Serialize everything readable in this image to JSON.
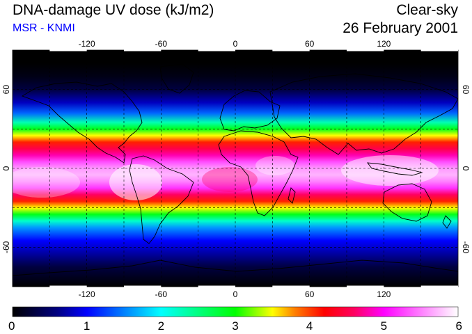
{
  "header": {
    "title": "DNA-damage UV dose (kJ/m2)",
    "source": "MSR - KNMI",
    "sky_condition": "Clear-sky",
    "date": "26 February 2001"
  },
  "map": {
    "projection": "equirectangular",
    "lon_range": [
      -180,
      180
    ],
    "lat_range": [
      -90,
      90
    ],
    "grid_spacing_deg": 30,
    "longitude_tick_labels": [
      {
        "value": -120,
        "label": "-120"
      },
      {
        "value": -60,
        "label": "-60"
      },
      {
        "value": 0,
        "label": "0"
      },
      {
        "value": 60,
        "label": "60"
      },
      {
        "value": 120,
        "label": "120"
      }
    ],
    "latitude_tick_labels": [
      {
        "value": 60,
        "label": "60"
      },
      {
        "value": 0,
        "label": "0"
      },
      {
        "value": -60,
        "label": "-60"
      }
    ],
    "dose_profile": [
      {
        "lat": 90,
        "dose": 0.0
      },
      {
        "lat": 80,
        "dose": 0.0
      },
      {
        "lat": 70,
        "dose": 0.1
      },
      {
        "lat": 60,
        "dose": 0.3
      },
      {
        "lat": 50,
        "dose": 0.8
      },
      {
        "lat": 42,
        "dose": 1.4
      },
      {
        "lat": 35,
        "dose": 2.3
      },
      {
        "lat": 30,
        "dose": 2.9
      },
      {
        "lat": 25,
        "dose": 3.5
      },
      {
        "lat": 20,
        "dose": 4.1
      },
      {
        "lat": 15,
        "dose": 4.5
      },
      {
        "lat": 10,
        "dose": 4.8
      },
      {
        "lat": 5,
        "dose": 5.3
      },
      {
        "lat": 0,
        "dose": 5.6
      },
      {
        "lat": -5,
        "dose": 5.7
      },
      {
        "lat": -10,
        "dose": 5.5
      },
      {
        "lat": -15,
        "dose": 5.2
      },
      {
        "lat": -20,
        "dose": 4.6
      },
      {
        "lat": -25,
        "dose": 4.1
      },
      {
        "lat": -30,
        "dose": 3.5
      },
      {
        "lat": -35,
        "dose": 2.9
      },
      {
        "lat": -40,
        "dose": 2.2
      },
      {
        "lat": -45,
        "dose": 1.6
      },
      {
        "lat": -55,
        "dose": 1.0
      },
      {
        "lat": -65,
        "dose": 0.7
      },
      {
        "lat": -75,
        "dose": 0.3
      },
      {
        "lat": -90,
        "dose": 0.0
      }
    ]
  },
  "colorbar": {
    "min": 0,
    "max": 6,
    "tick_labels": [
      "0",
      "1",
      "2",
      "3",
      "4",
      "5",
      "6"
    ],
    "color_stops": [
      {
        "value": 0.0,
        "color": "#000000"
      },
      {
        "value": 0.6,
        "color": "#000080"
      },
      {
        "value": 1.0,
        "color": "#0000ff"
      },
      {
        "value": 1.5,
        "color": "#0080ff"
      },
      {
        "value": 2.0,
        "color": "#00ffff"
      },
      {
        "value": 2.5,
        "color": "#00ff80"
      },
      {
        "value": 3.0,
        "color": "#00ff00"
      },
      {
        "value": 3.5,
        "color": "#ffff00"
      },
      {
        "value": 3.8,
        "color": "#ff8000"
      },
      {
        "value": 4.2,
        "color": "#ff0000"
      },
      {
        "value": 4.6,
        "color": "#ff0060"
      },
      {
        "value": 5.0,
        "color": "#ff00ff"
      },
      {
        "value": 6.0,
        "color": "#ffffff"
      }
    ]
  },
  "colors": {
    "title": "#000000",
    "source": "#0000ff",
    "coastline": "#000000",
    "gridline": "#000000"
  }
}
